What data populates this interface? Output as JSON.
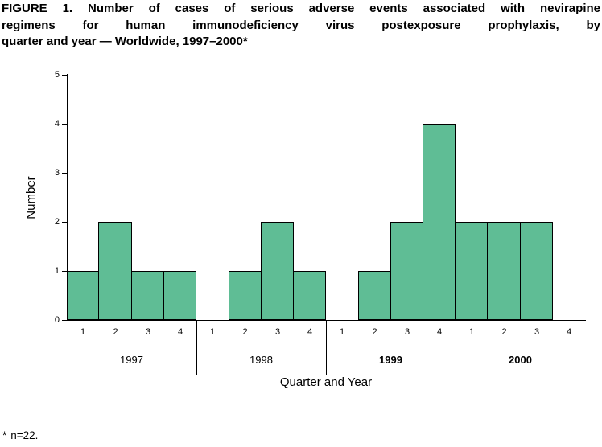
{
  "title_lines": [
    "FIGURE 1. Number of cases of serious adverse events associated with nevirapine",
    "regimens for human immunodeficiency virus postexposure prophylaxis, by",
    "quarter and year — Worldwide, 1997–2000*"
  ],
  "footnote": {
    "marker": "*",
    "text": "n=22."
  },
  "chart_data": {
    "type": "bar",
    "title": "Number of cases of serious adverse events associated with nevirapine regimens for HIV postexposure prophylaxis, by quarter and year, Worldwide, 1997–2000",
    "xlabel": "Quarter and Year",
    "ylabel": "Number",
    "ylim": [
      0,
      5
    ],
    "yticks": [
      0,
      1,
      2,
      3,
      4,
      5
    ],
    "grid": false,
    "legend": "none",
    "bar_fill": "#5fbd95",
    "bar_border": "#000000",
    "groups": [
      {
        "year": "1997",
        "bold": false,
        "quarters": [
          "1",
          "2",
          "3",
          "4"
        ],
        "values": [
          1,
          2,
          1,
          1
        ]
      },
      {
        "year": "1998",
        "bold": false,
        "quarters": [
          "1",
          "2",
          "3",
          "4"
        ],
        "values": [
          0,
          1,
          2,
          1
        ]
      },
      {
        "year": "1999",
        "bold": true,
        "quarters": [
          "1",
          "2",
          "3",
          "4"
        ],
        "values": [
          0,
          1,
          2,
          4
        ]
      },
      {
        "year": "2000",
        "bold": true,
        "quarters": [
          "1",
          "2",
          "3",
          "4"
        ],
        "values": [
          2,
          2,
          2,
          0
        ]
      }
    ],
    "total_n": 22
  }
}
